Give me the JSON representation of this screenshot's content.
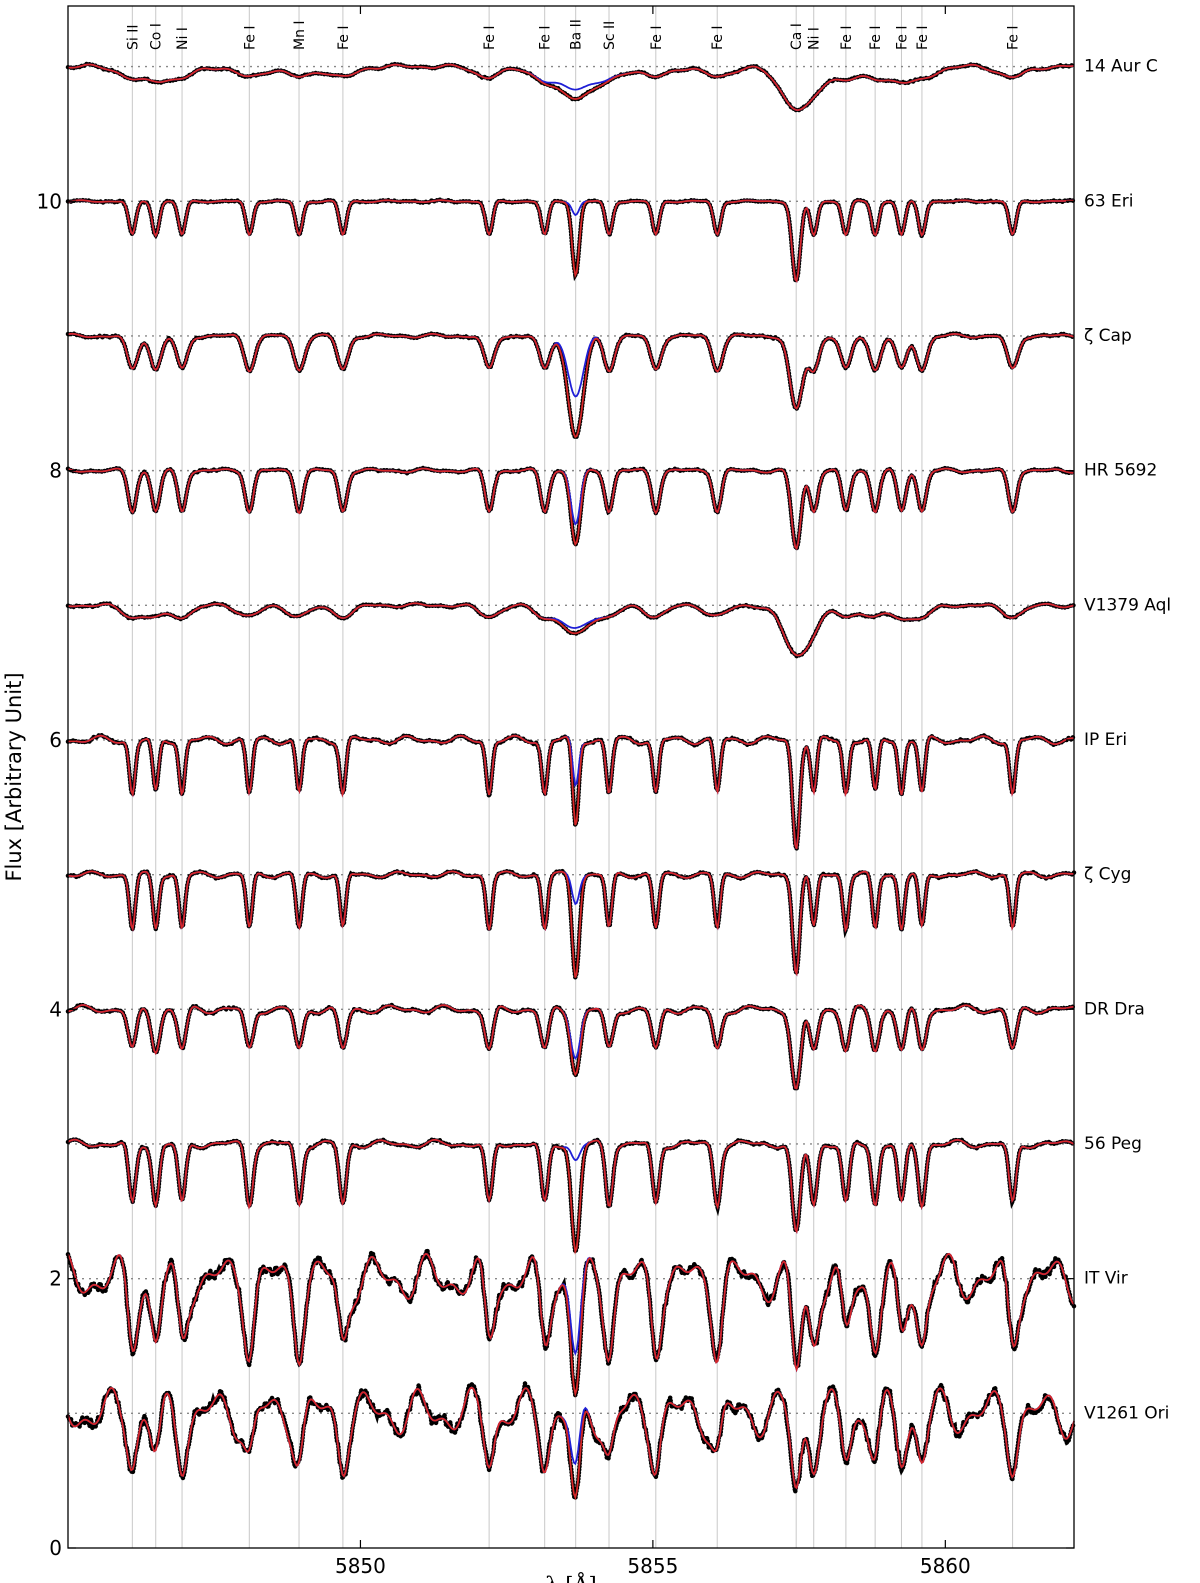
{
  "chart_data": {
    "type": "line",
    "xlabel": "λ [Å]",
    "ylabel": "Flux [Arbitrary Unit]",
    "xlim": [
      5845.0,
      5862.2
    ],
    "ylim": [
      0.0,
      11.45
    ],
    "x_ticks": [
      5850,
      5855,
      5860
    ],
    "y_ticks": [
      0,
      2,
      4,
      6,
      8,
      10
    ],
    "grid": false,
    "series_styles": [
      {
        "role": "observed",
        "color": "#000000",
        "style": "thick black dots"
      },
      {
        "role": "model_with_Ba",
        "color": "#d62728",
        "style": "thin red line"
      },
      {
        "role": "model_without_Ba",
        "color": "#1f1fd6",
        "style": "thin blue line"
      }
    ],
    "line_ids": [
      {
        "label": "Si II",
        "x": 5846.1
      },
      {
        "label": "Co I",
        "x": 5846.5
      },
      {
        "label": "Ni I",
        "x": 5846.95
      },
      {
        "label": "Fe I",
        "x": 5848.1
      },
      {
        "label": "Mn I",
        "x": 5848.95
      },
      {
        "label": "Fe I",
        "x": 5849.7
      },
      {
        "label": "Fe I",
        "x": 5852.2
      },
      {
        "label": "Fe I",
        "x": 5853.15
      },
      {
        "label": "Ba II",
        "x": 5853.68
      },
      {
        "label": "Sc II",
        "x": 5854.25
      },
      {
        "label": "Fe I",
        "x": 5855.05
      },
      {
        "label": "Fe I",
        "x": 5856.1
      },
      {
        "label": "Ca I",
        "x": 5857.45
      },
      {
        "label": "Ni I",
        "x": 5857.75
      },
      {
        "label": "Fe I",
        "x": 5858.3
      },
      {
        "label": "Fe I",
        "x": 5858.8
      },
      {
        "label": "Fe I",
        "x": 5859.25
      },
      {
        "label": "Fe I",
        "x": 5859.6
      },
      {
        "label": "Fe I",
        "x": 5861.15
      }
    ],
    "stars": [
      {
        "name": "14 Aur C",
        "continuum": 11.0,
        "ba_depth": 0.22,
        "ba_depth_noBa": 0.15,
        "ba_width": 0.3,
        "ca_depth": 0.28,
        "ca_width": 0.28,
        "other_depth": 0.08,
        "other_width": 0.22,
        "noise": 0.01
      },
      {
        "name": "63 Eri",
        "continuum": 10.0,
        "ba_depth": 0.55,
        "ba_depth_noBa": 0.1,
        "ba_width": 0.06,
        "ca_depth": 0.6,
        "ca_width": 0.07,
        "other_depth": 0.25,
        "other_width": 0.06,
        "noise": 0.005
      },
      {
        "name": "ζ Cap",
        "continuum": 9.0,
        "ba_depth": 0.75,
        "ba_depth_noBa": 0.45,
        "ba_width": 0.13,
        "ca_depth": 0.55,
        "ca_width": 0.11,
        "other_depth": 0.25,
        "other_width": 0.09,
        "noise": 0.01
      },
      {
        "name": "HR 5692",
        "continuum": 8.0,
        "ba_depth": 0.55,
        "ba_depth_noBa": 0.4,
        "ba_width": 0.08,
        "ca_depth": 0.58,
        "ca_width": 0.08,
        "other_depth": 0.3,
        "other_width": 0.07,
        "noise": 0.01
      },
      {
        "name": "V1379 Aql",
        "continuum": 7.0,
        "ba_depth": 0.22,
        "ba_depth_noBa": 0.18,
        "ba_width": 0.22,
        "ca_depth": 0.35,
        "ca_width": 0.22,
        "other_depth": 0.08,
        "other_width": 0.18,
        "noise": 0.01
      },
      {
        "name": "IP Eri",
        "continuum": 6.0,
        "ba_depth": 0.65,
        "ba_depth_noBa": 0.35,
        "ba_width": 0.05,
        "ca_depth": 0.8,
        "ca_width": 0.06,
        "other_depth": 0.4,
        "other_width": 0.05,
        "noise": 0.02
      },
      {
        "name": "ζ Cyg",
        "continuum": 5.0,
        "ba_depth": 0.75,
        "ba_depth_noBa": 0.2,
        "ba_width": 0.06,
        "ca_depth": 0.72,
        "ca_width": 0.06,
        "other_depth": 0.4,
        "other_width": 0.05,
        "noise": 0.015
      },
      {
        "name": "DR Dra",
        "continuum": 4.0,
        "ba_depth": 0.47,
        "ba_depth_noBa": 0.35,
        "ba_width": 0.08,
        "ca_depth": 0.6,
        "ca_width": 0.08,
        "other_depth": 0.3,
        "other_width": 0.07,
        "noise": 0.02
      },
      {
        "name": "56 Peg",
        "continuum": 3.0,
        "ba_depth": 0.8,
        "ba_depth_noBa": 0.12,
        "ba_width": 0.07,
        "ca_depth": 0.68,
        "ca_width": 0.07,
        "other_depth": 0.45,
        "other_width": 0.06,
        "noise": 0.02
      },
      {
        "name": "IT Vir",
        "continuum": 2.0,
        "ba_depth": 0.85,
        "ba_depth_noBa": 0.55,
        "ba_width": 0.08,
        "ca_depth": 0.7,
        "ca_width": 0.08,
        "other_depth": 0.45,
        "other_width": 0.08,
        "noise": 0.12
      },
      {
        "name": "V1261 Ori",
        "continuum": 1.0,
        "ba_depth": 0.75,
        "ba_depth_noBa": 0.5,
        "ba_width": 0.08,
        "ca_depth": 0.55,
        "ca_width": 0.08,
        "other_depth": 0.3,
        "other_width": 0.08,
        "noise": 0.12
      }
    ]
  }
}
